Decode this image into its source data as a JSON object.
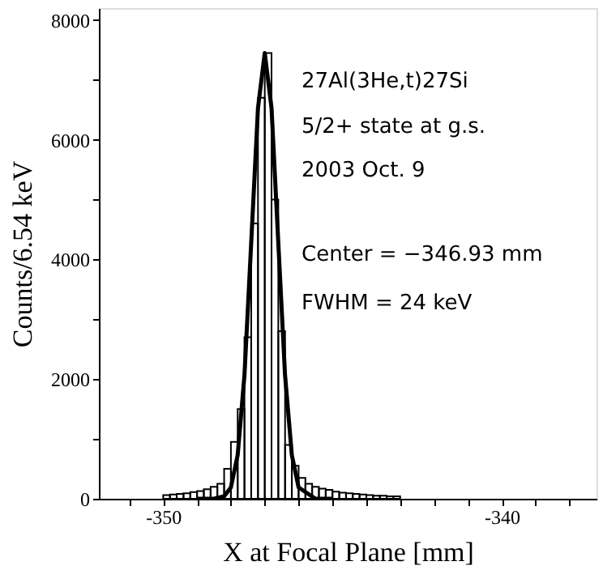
{
  "chart_data": {
    "type": "histogram",
    "xlabel": "X at Focal Plane [mm]",
    "ylabel": "Counts/6.54 keV",
    "xlim": [
      -351.9,
      -337.2
    ],
    "ylim": [
      0,
      8200
    ],
    "xticks": [
      {
        "value": -351,
        "label": null
      },
      -350,
      {
        "value": -349,
        "label": null
      },
      {
        "value": -348,
        "label": null
      },
      {
        "value": -347,
        "label": null
      },
      {
        "value": -346,
        "label": null
      },
      {
        "value": -345,
        "label": null
      },
      {
        "value": -344,
        "label": null
      },
      {
        "value": -343,
        "label": null
      },
      {
        "value": -342,
        "label": null
      },
      {
        "value": -341,
        "label": null
      },
      -340,
      {
        "value": -339,
        "label": null
      },
      {
        "value": -338,
        "label": null
      }
    ],
    "yticks": [
      0,
      {
        "value": 1000,
        "label": null
      },
      2000,
      {
        "value": 3000,
        "label": null
      },
      4000,
      {
        "value": 5000,
        "label": null
      },
      6000,
      {
        "value": 7000,
        "label": null
      },
      8000
    ],
    "grid": false,
    "annotations": [
      "27Al(3He,t)27Si",
      "5/2+ state at g.s.",
      "2003 Oct. 9",
      "Center =  −346.93 mm",
      "FWHM   =   24 keV"
    ],
    "series": [
      {
        "type": "histogram",
        "color": "#000000",
        "bins": [
          -350.0,
          -349.8,
          -349.6,
          -349.4,
          -349.2,
          -349.0,
          -348.8,
          -348.6,
          -348.4,
          -348.2,
          -348.0,
          -347.8,
          -347.6,
          -347.4,
          -347.2,
          -347.0,
          -346.8,
          -346.6,
          -346.4,
          -346.2,
          -346.0,
          -345.8,
          -345.6,
          -345.4,
          -345.2,
          -345.0,
          -344.8,
          -344.6,
          -344.4,
          -344.2,
          -344.0,
          -343.8,
          -343.6,
          -343.4,
          -343.2,
          -343.0
        ],
        "values": [
          60,
          70,
          80,
          90,
          110,
          130,
          160,
          200,
          250,
          500,
          950,
          1500,
          2700,
          4600,
          6700,
          7450,
          5000,
          2800,
          900,
          550,
          350,
          250,
          200,
          170,
          150,
          120,
          100,
          90,
          80,
          70,
          60,
          50,
          50,
          40,
          40
        ]
      },
      {
        "type": "line",
        "color": "#000000",
        "x": [
          -349.0,
          -348.5,
          -348.2,
          -348.0,
          -347.8,
          -347.6,
          -347.4,
          -347.2,
          -347.0,
          -346.8,
          -346.6,
          -346.4,
          -346.2,
          -346.0,
          -345.5,
          -345.0
        ],
        "values": [
          0,
          0,
          40,
          190,
          730,
          2060,
          4280,
          6530,
          7450,
          6530,
          4280,
          2060,
          730,
          190,
          0,
          0
        ]
      }
    ]
  }
}
